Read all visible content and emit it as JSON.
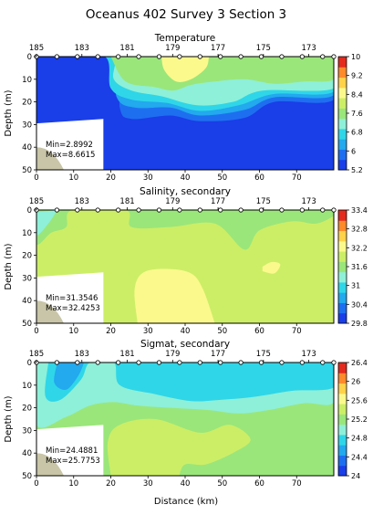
{
  "chart_data": {
    "type": "heatmap",
    "title": "Oceanus 402 Survey 3 Section 3",
    "xlabel": "Distance (km)",
    "xlim": [
      0,
      80
    ],
    "x_ticks": [
      0,
      10,
      20,
      30,
      40,
      50,
      60,
      70
    ],
    "top_axis_ticks": [
      "185",
      "183",
      "181",
      "179",
      "177",
      "175",
      "173"
    ],
    "station_positions_km": [
      0,
      5.5,
      11,
      16.5,
      22,
      27.5,
      33,
      38.5,
      44,
      49.5,
      55,
      60.5,
      66,
      71.5,
      77,
      80
    ],
    "panels": [
      {
        "title": "Temperature",
        "ylabel": "Depth (m)",
        "ylim": [
          0,
          50
        ],
        "y_ticks": [
          0,
          10,
          20,
          30,
          40,
          50
        ],
        "colorbar_ticks": [
          "10",
          "9.2",
          "8.4",
          "7.6",
          "6.8",
          "6",
          "5.2"
        ],
        "colorbar_range": [
          5.2,
          10
        ],
        "min_label": "Min=2.8992",
        "max_label": "Max=8.6615",
        "colors": [
          "#1a3ee8",
          "#1e6ff0",
          "#22a9ee",
          "#2fd6e8",
          "#8ef0d8",
          "#9ae67a",
          "#ccee66",
          "#fbf98c",
          "#ffd24a",
          "#ff8a2a",
          "#e32a1e"
        ]
      },
      {
        "title": "Salinity, secondary",
        "ylabel": "Depth (m)",
        "ylim": [
          0,
          50
        ],
        "y_ticks": [
          0,
          10,
          20,
          30,
          40,
          50
        ],
        "colorbar_ticks": [
          "33.4",
          "32.8",
          "32.2",
          "31.6",
          "31",
          "30.4",
          "29.8"
        ],
        "colorbar_range": [
          29.8,
          33.4
        ],
        "min_label": "Min=31.3546",
        "max_label": "Max=32.4253",
        "colors": [
          "#1a3ee8",
          "#1e6ff0",
          "#22a9ee",
          "#2fd6e8",
          "#8ef0d8",
          "#9ae67a",
          "#ccee66",
          "#fbf98c",
          "#ffd24a",
          "#ff8a2a",
          "#e32a1e"
        ]
      },
      {
        "title": "Sigmat, secondary",
        "ylabel": "Depth (m)",
        "ylim": [
          0,
          50
        ],
        "y_ticks": [
          0,
          10,
          20,
          30,
          40,
          50
        ],
        "colorbar_ticks": [
          "26.4",
          "26",
          "25.6",
          "25.2",
          "24.8",
          "24.4",
          "24"
        ],
        "colorbar_range": [
          24,
          26.4
        ],
        "min_label": "Min=24.4881",
        "max_label": "Max=25.7753",
        "colors": [
          "#1a3ee8",
          "#1e6ff0",
          "#22a9ee",
          "#2fd6e8",
          "#8ef0d8",
          "#9ae67a",
          "#ccee66",
          "#fbf98c",
          "#ffd24a",
          "#ff8a2a",
          "#e32a1e"
        ]
      }
    ]
  },
  "colors": {
    "no_data_mask": "#ffffff",
    "bathymetry": "#c8c5a8",
    "axis": "#000000"
  }
}
